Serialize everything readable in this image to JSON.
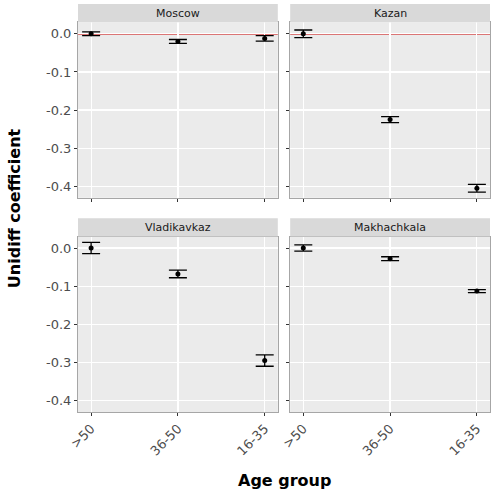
{
  "chart_data": {
    "type": "scatter",
    "x_label": "Age group",
    "y_label": "Unidiff coefficient",
    "categories": [
      ">50",
      "36-50",
      "16-35"
    ],
    "ylim": [
      -0.43,
      0.03
    ],
    "yticks": [
      {
        "value": 0,
        "label": "0.0"
      },
      -0.1,
      -0.2,
      -0.3,
      -0.4
    ],
    "grid": true,
    "color": "#000000",
    "marker": "circle",
    "reference_line": {
      "value": 0,
      "color": "#cc0000"
    },
    "panels": [
      {
        "title": "Moscow",
        "values": [
          0.0,
          -0.02,
          -0.012
        ],
        "error": [
          0.005,
          0.005,
          0.007
        ]
      },
      {
        "title": "Kazan",
        "values": [
          0.0,
          -0.225,
          -0.405
        ],
        "error": [
          0.01,
          0.008,
          0.01
        ]
      },
      {
        "title": "Vladikavkaz",
        "values": [
          0.0,
          -0.068,
          -0.295
        ],
        "error": [
          0.015,
          0.01,
          0.015
        ]
      },
      {
        "title": "Makhachkala",
        "values": [
          0.0,
          -0.028,
          -0.113
        ],
        "error": [
          0.008,
          0.005,
          0.004
        ]
      }
    ]
  }
}
